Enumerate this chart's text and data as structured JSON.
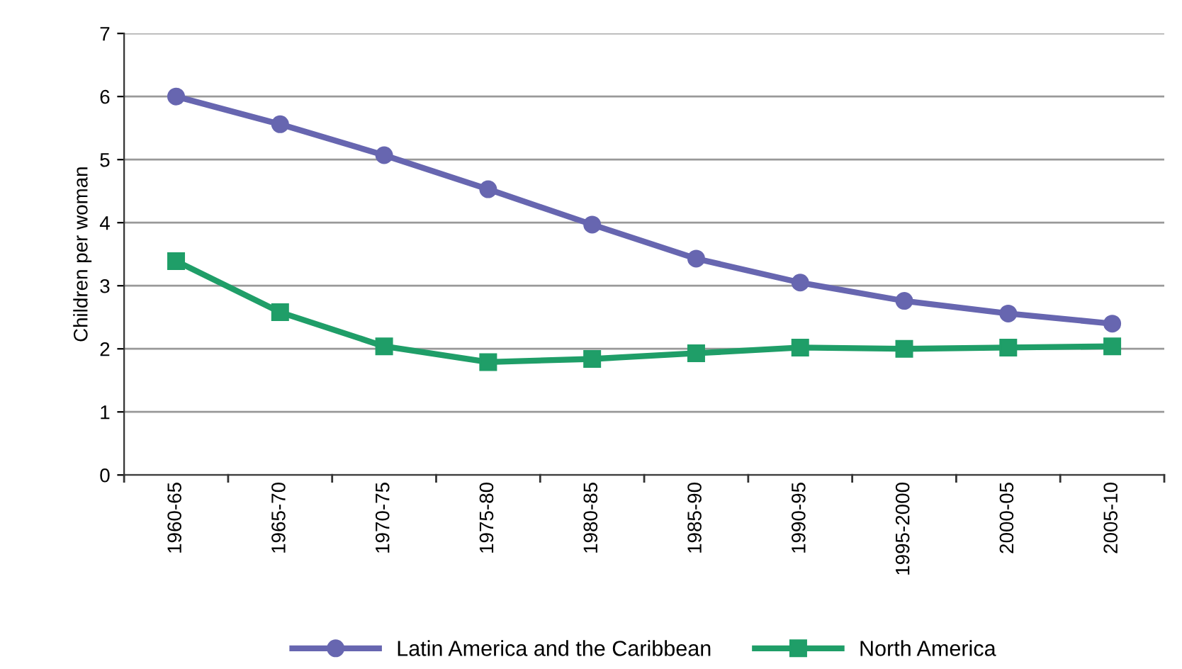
{
  "chart_data": {
    "type": "line",
    "ylabel": "Children per woman",
    "categories": [
      "1960-65",
      "1965-70",
      "1970-75",
      "1975-80",
      "1980-85",
      "1985-90",
      "1990-95",
      "1995-2000",
      "2000-05",
      "2005-10"
    ],
    "series": [
      {
        "name": "Latin America and the Caribbean",
        "color": "#6766b0",
        "marker": "circle",
        "values": [
          6.0,
          5.56,
          5.07,
          4.53,
          3.97,
          3.43,
          3.05,
          2.76,
          2.56,
          2.4
        ]
      },
      {
        "name": "North America",
        "color": "#1f9e68",
        "marker": "square",
        "values": [
          3.39,
          2.58,
          2.04,
          1.79,
          1.84,
          1.93,
          2.02,
          2.0,
          2.02,
          2.04
        ]
      }
    ],
    "ylim": [
      0,
      7
    ],
    "yticks": [
      0,
      1,
      2,
      3,
      4,
      5,
      6,
      7
    ],
    "grid": "y",
    "legend": "bottom",
    "line_style": "solid"
  }
}
